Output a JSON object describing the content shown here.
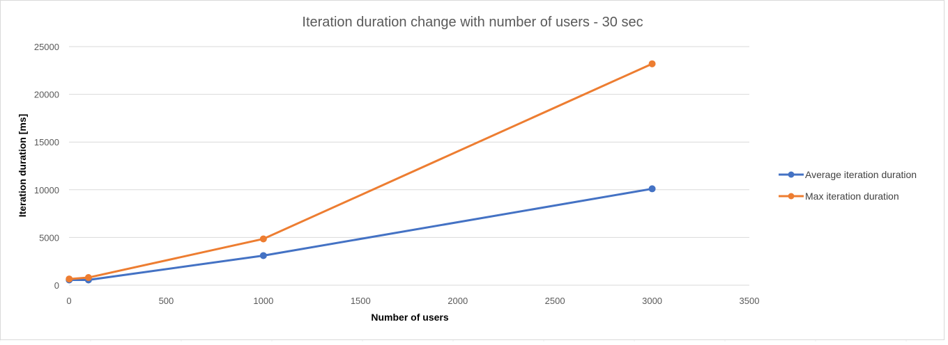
{
  "chart_data": {
    "type": "line",
    "title": "Iteration duration change with number of users - 30 sec",
    "xlabel": "Number of users",
    "ylabel": "Iteration duration [ms]",
    "xlim": [
      0,
      3500
    ],
    "ylim": [
      0,
      25000
    ],
    "x_ticks": [
      "0",
      "500",
      "1000",
      "1500",
      "2000",
      "2500",
      "3000",
      "3500"
    ],
    "y_ticks": [
      "0",
      "5000",
      "10000",
      "15000",
      "20000",
      "25000"
    ],
    "grid": true,
    "legend_position": "right",
    "series": [
      {
        "name": "Average iteration duration",
        "color": "#4472C4",
        "x": [
          1,
          100,
          1000,
          3000
        ],
        "y": [
          550,
          550,
          3100,
          10100
        ]
      },
      {
        "name": "Max iteration duration",
        "color": "#ED7D31",
        "x": [
          1,
          100,
          1000,
          3000
        ],
        "y": [
          650,
          800,
          4850,
          23200
        ]
      }
    ]
  }
}
